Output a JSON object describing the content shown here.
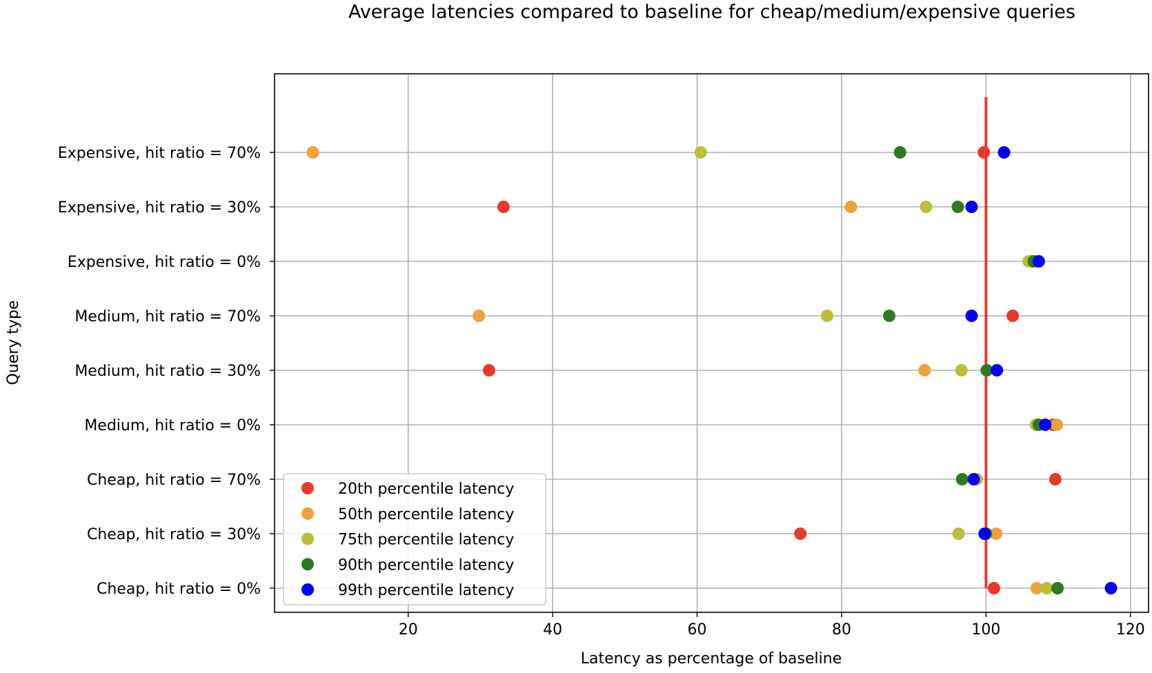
{
  "chart_data": {
    "type": "scatter",
    "title": "Average latencies compared to baseline for cheap/medium/expensive queries",
    "xlabel": "Latency as percentage of baseline",
    "ylabel": "Query type",
    "xlim": [
      1.5,
      122.5
    ],
    "x_ticks": [
      20,
      40,
      60,
      80,
      100,
      120
    ],
    "x_tick_labels": [
      "20",
      "40",
      "60",
      "80",
      "100",
      "120"
    ],
    "categories": [
      "Cheap, hit ratio = 0%",
      "Cheap, hit ratio = 30%",
      "Cheap, hit ratio = 70%",
      "Medium, hit ratio = 0%",
      "Medium, hit ratio = 30%",
      "Medium, hit ratio = 70%",
      "Expensive, hit ratio = 0%",
      "Expensive, hit ratio = 30%",
      "Expensive, hit ratio = 70%"
    ],
    "grid": true,
    "legend_position": "lower-left",
    "baseline": {
      "x": 100,
      "color": "#e8392c"
    },
    "series": [
      {
        "name": "20th percentile latency",
        "color": "#e8392c",
        "values": [
          101.1,
          74.3,
          109.6,
          109.3,
          31.2,
          103.7,
          106.4,
          33.2,
          99.7
        ]
      },
      {
        "name": "50th percentile latency",
        "color": "#f0a13a",
        "values": [
          107.0,
          101.4,
          98.7,
          109.8,
          91.5,
          29.8,
          107.1,
          81.3,
          6.8
        ]
      },
      {
        "name": "75th percentile latency",
        "color": "#bcbd3a",
        "values": [
          108.4,
          96.2,
          98.7,
          106.9,
          96.6,
          78.0,
          105.9,
          91.7,
          60.5
        ]
      },
      {
        "name": "90th percentile latency",
        "color": "#2e7a22",
        "values": [
          109.9,
          100.0,
          96.7,
          107.3,
          100.1,
          86.6,
          106.6,
          96.1,
          88.1
        ]
      },
      {
        "name": "99th percentile latency",
        "color": "#0000f2",
        "values": [
          117.3,
          99.8,
          98.3,
          108.2,
          101.5,
          98.0,
          107.3,
          98.0,
          102.5
        ]
      }
    ]
  }
}
